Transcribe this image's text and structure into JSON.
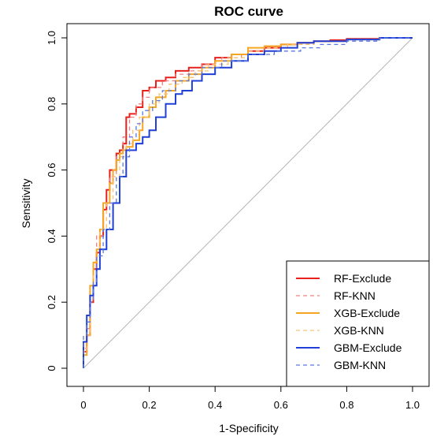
{
  "chart_data": {
    "type": "line",
    "title": "ROC curve",
    "xlabel": "1-Specificity",
    "ylabel": "Sensitivity",
    "xlim": [
      0,
      1
    ],
    "ylim": [
      0,
      1
    ],
    "x_ticks": [
      "0",
      "0.2",
      "0.4",
      "0.6",
      "0.8",
      "1.0"
    ],
    "y_ticks": [
      "0",
      "0.2",
      "0.4",
      "0.6",
      "0.8",
      "1.0"
    ],
    "grid": false,
    "legend_position": "bottom-right",
    "reference_line": {
      "from": [
        0,
        0
      ],
      "to": [
        1,
        1
      ],
      "color": "#b3b3b3"
    },
    "series": [
      {
        "name": "RF-Exclude",
        "color": "#e8201c",
        "style": "solid",
        "points": [
          [
            0,
            0
          ],
          [
            0.01,
            0.05
          ],
          [
            0.02,
            0.1
          ],
          [
            0.03,
            0.2
          ],
          [
            0.04,
            0.3
          ],
          [
            0.05,
            0.35
          ],
          [
            0.06,
            0.4
          ],
          [
            0.07,
            0.48
          ],
          [
            0.08,
            0.54
          ],
          [
            0.1,
            0.6
          ],
          [
            0.11,
            0.65
          ],
          [
            0.12,
            0.66
          ],
          [
            0.13,
            0.68
          ],
          [
            0.14,
            0.76
          ],
          [
            0.16,
            0.77
          ],
          [
            0.18,
            0.79
          ],
          [
            0.2,
            0.84
          ],
          [
            0.22,
            0.85
          ],
          [
            0.25,
            0.87
          ],
          [
            0.28,
            0.88
          ],
          [
            0.32,
            0.9
          ],
          [
            0.36,
            0.91
          ],
          [
            0.4,
            0.92
          ],
          [
            0.45,
            0.94
          ],
          [
            0.5,
            0.95
          ],
          [
            0.55,
            0.96
          ],
          [
            0.6,
            0.97
          ],
          [
            0.65,
            0.98
          ],
          [
            0.7,
            0.985
          ],
          [
            0.75,
            0.99
          ],
          [
            0.8,
            0.993
          ],
          [
            0.9,
            0.997
          ],
          [
            1,
            1
          ]
        ]
      },
      {
        "name": "RF-KNN",
        "color": "#f08080",
        "style": "dashed",
        "points": [
          [
            0,
            0
          ],
          [
            0.01,
            0.06
          ],
          [
            0.02,
            0.12
          ],
          [
            0.03,
            0.22
          ],
          [
            0.04,
            0.3
          ],
          [
            0.06,
            0.4
          ],
          [
            0.08,
            0.5
          ],
          [
            0.1,
            0.58
          ],
          [
            0.12,
            0.64
          ],
          [
            0.14,
            0.7
          ],
          [
            0.16,
            0.76
          ],
          [
            0.18,
            0.8
          ],
          [
            0.2,
            0.82
          ],
          [
            0.24,
            0.85
          ],
          [
            0.28,
            0.87
          ],
          [
            0.32,
            0.89
          ],
          [
            0.36,
            0.9
          ],
          [
            0.42,
            0.92
          ],
          [
            0.48,
            0.94
          ],
          [
            0.55,
            0.95
          ],
          [
            0.62,
            0.97
          ],
          [
            0.7,
            0.98
          ],
          [
            0.8,
            0.99
          ],
          [
            0.9,
            0.996
          ],
          [
            1,
            1
          ]
        ]
      },
      {
        "name": "XGB-Exclude",
        "color": "#f5a623",
        "style": "solid",
        "points": [
          [
            0,
            0
          ],
          [
            0.01,
            0.04
          ],
          [
            0.02,
            0.1
          ],
          [
            0.03,
            0.25
          ],
          [
            0.04,
            0.32
          ],
          [
            0.05,
            0.36
          ],
          [
            0.06,
            0.42
          ],
          [
            0.08,
            0.5
          ],
          [
            0.09,
            0.56
          ],
          [
            0.1,
            0.6
          ],
          [
            0.11,
            0.63
          ],
          [
            0.12,
            0.65
          ],
          [
            0.13,
            0.66
          ],
          [
            0.15,
            0.67
          ],
          [
            0.17,
            0.69
          ],
          [
            0.18,
            0.72
          ],
          [
            0.2,
            0.76
          ],
          [
            0.22,
            0.79
          ],
          [
            0.25,
            0.82
          ],
          [
            0.28,
            0.84
          ],
          [
            0.32,
            0.87
          ],
          [
            0.36,
            0.89
          ],
          [
            0.4,
            0.91
          ],
          [
            0.45,
            0.93
          ],
          [
            0.5,
            0.95
          ],
          [
            0.55,
            0.97
          ],
          [
            0.6,
            0.975
          ],
          [
            0.65,
            0.98
          ],
          [
            0.7,
            0.985
          ],
          [
            0.8,
            0.99
          ],
          [
            0.9,
            0.995
          ],
          [
            1,
            1
          ]
        ]
      },
      {
        "name": "XGB-KNN",
        "color": "#f7c27a",
        "style": "dashed",
        "points": [
          [
            0,
            0
          ],
          [
            0.01,
            0.05
          ],
          [
            0.02,
            0.1
          ],
          [
            0.03,
            0.2
          ],
          [
            0.04,
            0.28
          ],
          [
            0.05,
            0.34
          ],
          [
            0.07,
            0.42
          ],
          [
            0.09,
            0.5
          ],
          [
            0.11,
            0.58
          ],
          [
            0.13,
            0.64
          ],
          [
            0.15,
            0.68
          ],
          [
            0.17,
            0.72
          ],
          [
            0.2,
            0.76
          ],
          [
            0.23,
            0.8
          ],
          [
            0.26,
            0.83
          ],
          [
            0.3,
            0.86
          ],
          [
            0.34,
            0.88
          ],
          [
            0.38,
            0.9
          ],
          [
            0.44,
            0.92
          ],
          [
            0.5,
            0.94
          ],
          [
            0.56,
            0.96
          ],
          [
            0.62,
            0.97
          ],
          [
            0.7,
            0.98
          ],
          [
            0.8,
            0.99
          ],
          [
            0.9,
            0.996
          ],
          [
            1,
            1
          ]
        ]
      },
      {
        "name": "GBM-Exclude",
        "color": "#1f3fd6",
        "style": "solid",
        "points": [
          [
            0,
            0
          ],
          [
            0.01,
            0.08
          ],
          [
            0.02,
            0.16
          ],
          [
            0.03,
            0.22
          ],
          [
            0.04,
            0.25
          ],
          [
            0.05,
            0.3
          ],
          [
            0.07,
            0.36
          ],
          [
            0.09,
            0.42
          ],
          [
            0.11,
            0.5
          ],
          [
            0.13,
            0.58
          ],
          [
            0.16,
            0.66
          ],
          [
            0.18,
            0.68
          ],
          [
            0.2,
            0.7
          ],
          [
            0.22,
            0.72
          ],
          [
            0.25,
            0.76
          ],
          [
            0.28,
            0.8
          ],
          [
            0.3,
            0.83
          ],
          [
            0.33,
            0.84
          ],
          [
            0.36,
            0.87
          ],
          [
            0.4,
            0.89
          ],
          [
            0.45,
            0.91
          ],
          [
            0.5,
            0.93
          ],
          [
            0.55,
            0.95
          ],
          [
            0.6,
            0.96
          ],
          [
            0.65,
            0.97
          ],
          [
            0.7,
            0.985
          ],
          [
            0.8,
            0.99
          ],
          [
            0.9,
            0.995
          ],
          [
            1,
            1
          ]
        ]
      },
      {
        "name": "GBM-KNN",
        "color": "#5a78e0",
        "style": "dashed",
        "points": [
          [
            0,
            0
          ],
          [
            0.01,
            0.1
          ],
          [
            0.02,
            0.14
          ],
          [
            0.03,
            0.2
          ],
          [
            0.04,
            0.26
          ],
          [
            0.06,
            0.34
          ],
          [
            0.08,
            0.42
          ],
          [
            0.1,
            0.5
          ],
          [
            0.12,
            0.58
          ],
          [
            0.14,
            0.64
          ],
          [
            0.16,
            0.7
          ],
          [
            0.18,
            0.74
          ],
          [
            0.21,
            0.78
          ],
          [
            0.24,
            0.81
          ],
          [
            0.28,
            0.84
          ],
          [
            0.32,
            0.87
          ],
          [
            0.36,
            0.89
          ],
          [
            0.42,
            0.91
          ],
          [
            0.5,
            0.93
          ],
          [
            0.58,
            0.95
          ],
          [
            0.66,
            0.96
          ],
          [
            0.72,
            0.97
          ],
          [
            0.8,
            0.98
          ],
          [
            0.9,
            0.99
          ],
          [
            1,
            1
          ]
        ]
      }
    ]
  }
}
